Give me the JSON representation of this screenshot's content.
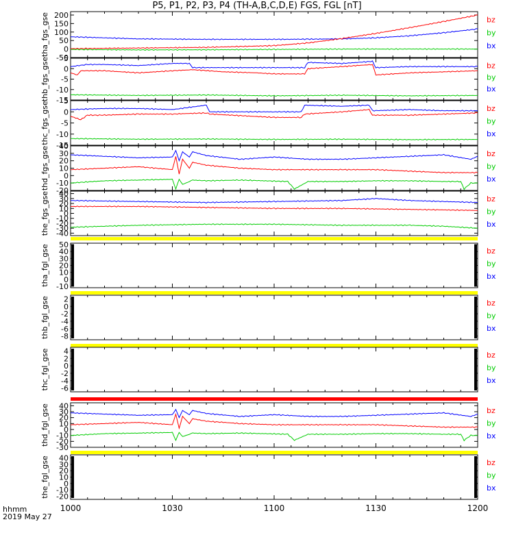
{
  "title": "P5, P1, P2, P3, P4 (TH-A,B,C,D,E) FGS, FGL [nT]",
  "footer": {
    "line1": "hhmm",
    "line2": "2019 May 27"
  },
  "colors": {
    "bx": "#0000ff",
    "by": "#00cc00",
    "bz": "#ff0000",
    "quality_good": "#ffff00",
    "quality_bad": "#ff0000"
  },
  "chart_data": [
    {
      "type": "line",
      "ylabel": "tha_fgs_gse",
      "ylim": [
        -50,
        220
      ],
      "yticks": [
        -50,
        0,
        50,
        100,
        150,
        200
      ],
      "xlim": [
        0,
        120
      ],
      "xticks": [
        0,
        30,
        60,
        90,
        120
      ],
      "xtick_labels": [
        "1000",
        "1030",
        "1100",
        "1130",
        "1200"
      ],
      "legend": [
        "bz",
        "by",
        "bx"
      ],
      "series": [
        {
          "name": "bx",
          "x": [
            0,
            10,
            20,
            40,
            60,
            70,
            80,
            90,
            100,
            110,
            120
          ],
          "values": [
            72,
            66,
            60,
            57,
            57,
            58,
            60,
            66,
            78,
            96,
            118
          ]
        },
        {
          "name": "by",
          "x": [
            0,
            20,
            40,
            60,
            80,
            100,
            120
          ],
          "values": [
            -2,
            -5,
            -4,
            -2,
            0,
            0,
            0
          ]
        },
        {
          "name": "bz",
          "x": [
            0,
            20,
            40,
            60,
            70,
            80,
            90,
            100,
            110,
            120
          ],
          "values": [
            2,
            6,
            10,
            20,
            36,
            62,
            92,
            126,
            162,
            200
          ]
        }
      ]
    },
    {
      "type": "line",
      "ylabel": "thb_fgs_gse",
      "ylim": [
        -15,
        5
      ],
      "yticks": [
        -15,
        -10,
        -5,
        0,
        5
      ],
      "xlim": [
        0,
        120
      ],
      "legend": [
        "bz",
        "by",
        "bx"
      ],
      "series": [
        {
          "name": "bx",
          "x": [
            0,
            5,
            10,
            20,
            30,
            35,
            36,
            45,
            60,
            69,
            70,
            80,
            89,
            90,
            100,
            110,
            120
          ],
          "values": [
            1,
            2,
            2,
            1.5,
            2.5,
            2.5,
            0.5,
            0.5,
            0.5,
            0.5,
            3,
            2.5,
            3.5,
            0.5,
            1,
            1,
            1
          ]
        },
        {
          "name": "by",
          "x": [
            0,
            20,
            40,
            60,
            80,
            100,
            120
          ],
          "values": [
            -12.5,
            -12.8,
            -12.6,
            -13,
            -12.7,
            -13,
            -12.8
          ]
        },
        {
          "name": "bz",
          "x": [
            0,
            2,
            3,
            5,
            10,
            20,
            30,
            36,
            45,
            55,
            60,
            69,
            70,
            80,
            89,
            90,
            100,
            110,
            120
          ],
          "values": [
            -2,
            -3,
            -1,
            -1,
            -1,
            -2,
            -1,
            -0.5,
            -1.5,
            -2,
            -2.5,
            -2.5,
            0,
            1,
            2,
            -3,
            -2,
            -1.5,
            -1
          ]
        }
      ]
    },
    {
      "type": "line",
      "ylabel": "thc_fgs_gse",
      "ylim": [
        -15,
        5
      ],
      "yticks": [
        -15,
        -10,
        -5,
        0,
        5
      ],
      "xlim": [
        0,
        120
      ],
      "legend": [
        "bz",
        "by",
        "bx"
      ],
      "series": [
        {
          "name": "bx",
          "x": [
            0,
            10,
            20,
            30,
            40,
            41,
            60,
            68,
            69,
            80,
            88,
            89,
            100,
            110,
            120
          ],
          "values": [
            1,
            1.5,
            1.5,
            1,
            3,
            0,
            0,
            0,
            3,
            2.5,
            3,
            0.5,
            1,
            0.5,
            0.5
          ]
        },
        {
          "name": "by",
          "x": [
            0,
            20,
            40,
            60,
            80,
            100,
            120
          ],
          "values": [
            -12,
            -12.3,
            -12.2,
            -12.4,
            -12.3,
            -12.5,
            -12.4
          ]
        },
        {
          "name": "bz",
          "x": [
            0,
            3,
            5,
            8,
            10,
            20,
            30,
            40,
            41,
            60,
            68,
            69,
            80,
            88,
            89,
            100,
            120
          ],
          "values": [
            -2,
            -3.5,
            -1.5,
            -1.5,
            -1.5,
            -1,
            -1,
            -0.5,
            -1,
            -2.5,
            -2.5,
            -1,
            0,
            1,
            -1.5,
            -1.5,
            -0.5
          ]
        }
      ]
    },
    {
      "type": "line",
      "ylabel": "thd_fgs_gse",
      "ylim": [
        -20,
        40
      ],
      "yticks": [
        -20,
        -10,
        0,
        10,
        20,
        30,
        40
      ],
      "xlim": [
        0,
        120
      ],
      "legend": [
        "bz",
        "by",
        "bx"
      ],
      "series": [
        {
          "name": "bx",
          "x": [
            0,
            10,
            20,
            30,
            31,
            32,
            33,
            35,
            36,
            40,
            50,
            60,
            70,
            80,
            90,
            100,
            110,
            118,
            120
          ],
          "values": [
            28,
            26,
            24,
            25,
            34,
            20,
            32,
            25,
            32,
            27,
            22,
            25,
            22,
            22,
            24,
            26,
            28,
            22,
            26
          ]
        },
        {
          "name": "by",
          "x": [
            0,
            10,
            20,
            30,
            31,
            32,
            33,
            35,
            36,
            40,
            50,
            64,
            66,
            70,
            80,
            90,
            100,
            110,
            115,
            116,
            118,
            120
          ],
          "values": [
            -10,
            -7,
            -6,
            -5,
            -18,
            -5,
            -12,
            -8,
            -6,
            -7,
            -6,
            -8,
            -18,
            -8,
            -8,
            -7,
            -7,
            -8,
            -8,
            -18,
            -10,
            -10
          ]
        },
        {
          "name": "bz",
          "x": [
            0,
            10,
            20,
            30,
            31,
            32,
            33,
            35,
            36,
            40,
            50,
            60,
            70,
            80,
            90,
            100,
            110,
            120
          ],
          "values": [
            8,
            10,
            12,
            8,
            26,
            2,
            22,
            10,
            18,
            14,
            10,
            8,
            8,
            8,
            8,
            6,
            4,
            4
          ]
        }
      ]
    },
    {
      "type": "line",
      "ylabel": "the_fgs_gse",
      "ylim": [
        -45,
        45
      ],
      "yticks": [
        -40,
        -30,
        -20,
        -10,
        0,
        10,
        20,
        30,
        40
      ],
      "xlim": [
        0,
        120
      ],
      "legend": [
        "bz",
        "by",
        "bx"
      ],
      "series": [
        {
          "name": "bx",
          "x": [
            0,
            20,
            40,
            60,
            80,
            90,
            100,
            110,
            120
          ],
          "values": [
            26,
            24,
            22,
            24,
            26,
            30,
            26,
            24,
            22
          ]
        },
        {
          "name": "by",
          "x": [
            0,
            10,
            20,
            40,
            60,
            80,
            100,
            110,
            120
          ],
          "values": [
            -28,
            -26,
            -24,
            -22,
            -22,
            -24,
            -24,
            -26,
            -30
          ]
        },
        {
          "name": "bz",
          "x": [
            0,
            20,
            40,
            60,
            80,
            100,
            120
          ],
          "values": [
            14,
            14,
            12,
            10,
            10,
            8,
            6
          ]
        }
      ]
    },
    {
      "type": "line",
      "ylabel": "tha_fgl_gse",
      "ylim": [
        -12,
        52
      ],
      "yticks": [
        -10,
        0,
        10,
        20,
        30,
        40,
        50
      ],
      "xlim": [
        0,
        120
      ],
      "legend": [
        "bz",
        "by",
        "bx"
      ],
      "series": []
    },
    {
      "type": "line",
      "ylabel": "thb_fgl_gse",
      "ylim": [
        -9,
        3
      ],
      "yticks": [
        -8,
        -6,
        -4,
        -2,
        0,
        2
      ],
      "xlim": [
        0,
        120
      ],
      "legend": [
        "bz",
        "by",
        "bx"
      ],
      "series": []
    },
    {
      "type": "line",
      "ylabel": "thc_fgl_gse",
      "ylim": [
        -7,
        5
      ],
      "yticks": [
        -6,
        -4,
        -2,
        0,
        2,
        4
      ],
      "xlim": [
        0,
        120
      ],
      "legend": [
        "bz",
        "by",
        "bx"
      ],
      "series": []
    },
    {
      "type": "line",
      "ylabel": "thd_fgl_gse",
      "ylim": [
        -30,
        45
      ],
      "yticks": [
        -30,
        -20,
        -10,
        0,
        10,
        20,
        30,
        40
      ],
      "xlim": [
        0,
        120
      ],
      "legend": [
        "bz",
        "by",
        "bx"
      ],
      "series": [
        {
          "name": "bx",
          "x": [
            0,
            10,
            20,
            30,
            31,
            32,
            33,
            35,
            36,
            40,
            50,
            60,
            70,
            80,
            90,
            100,
            110,
            118,
            120
          ],
          "values": [
            28,
            26,
            24,
            25,
            34,
            20,
            32,
            25,
            32,
            27,
            22,
            25,
            22,
            22,
            24,
            26,
            28,
            22,
            26
          ]
        },
        {
          "name": "by",
          "x": [
            0,
            10,
            20,
            30,
            31,
            32,
            33,
            35,
            36,
            40,
            50,
            64,
            66,
            70,
            80,
            90,
            100,
            110,
            115,
            116,
            118,
            120
          ],
          "values": [
            -10,
            -7,
            -6,
            -5,
            -18,
            -5,
            -12,
            -8,
            -6,
            -7,
            -6,
            -8,
            -18,
            -8,
            -8,
            -7,
            -7,
            -8,
            -8,
            -18,
            -10,
            -10
          ]
        },
        {
          "name": "bz",
          "x": [
            0,
            10,
            20,
            30,
            31,
            32,
            33,
            35,
            36,
            40,
            50,
            60,
            70,
            80,
            90,
            100,
            110,
            120
          ],
          "values": [
            8,
            10,
            12,
            8,
            26,
            2,
            22,
            10,
            18,
            14,
            10,
            8,
            8,
            8,
            8,
            6,
            4,
            4
          ]
        }
      ]
    },
    {
      "type": "line",
      "ylabel": "the_fgl_gse",
      "ylim": [
        -25,
        45
      ],
      "yticks": [
        -20,
        -10,
        0,
        10,
        20,
        30,
        40
      ],
      "xlim": [
        0,
        120
      ],
      "legend": [
        "bz",
        "by",
        "bx"
      ],
      "series": []
    }
  ]
}
